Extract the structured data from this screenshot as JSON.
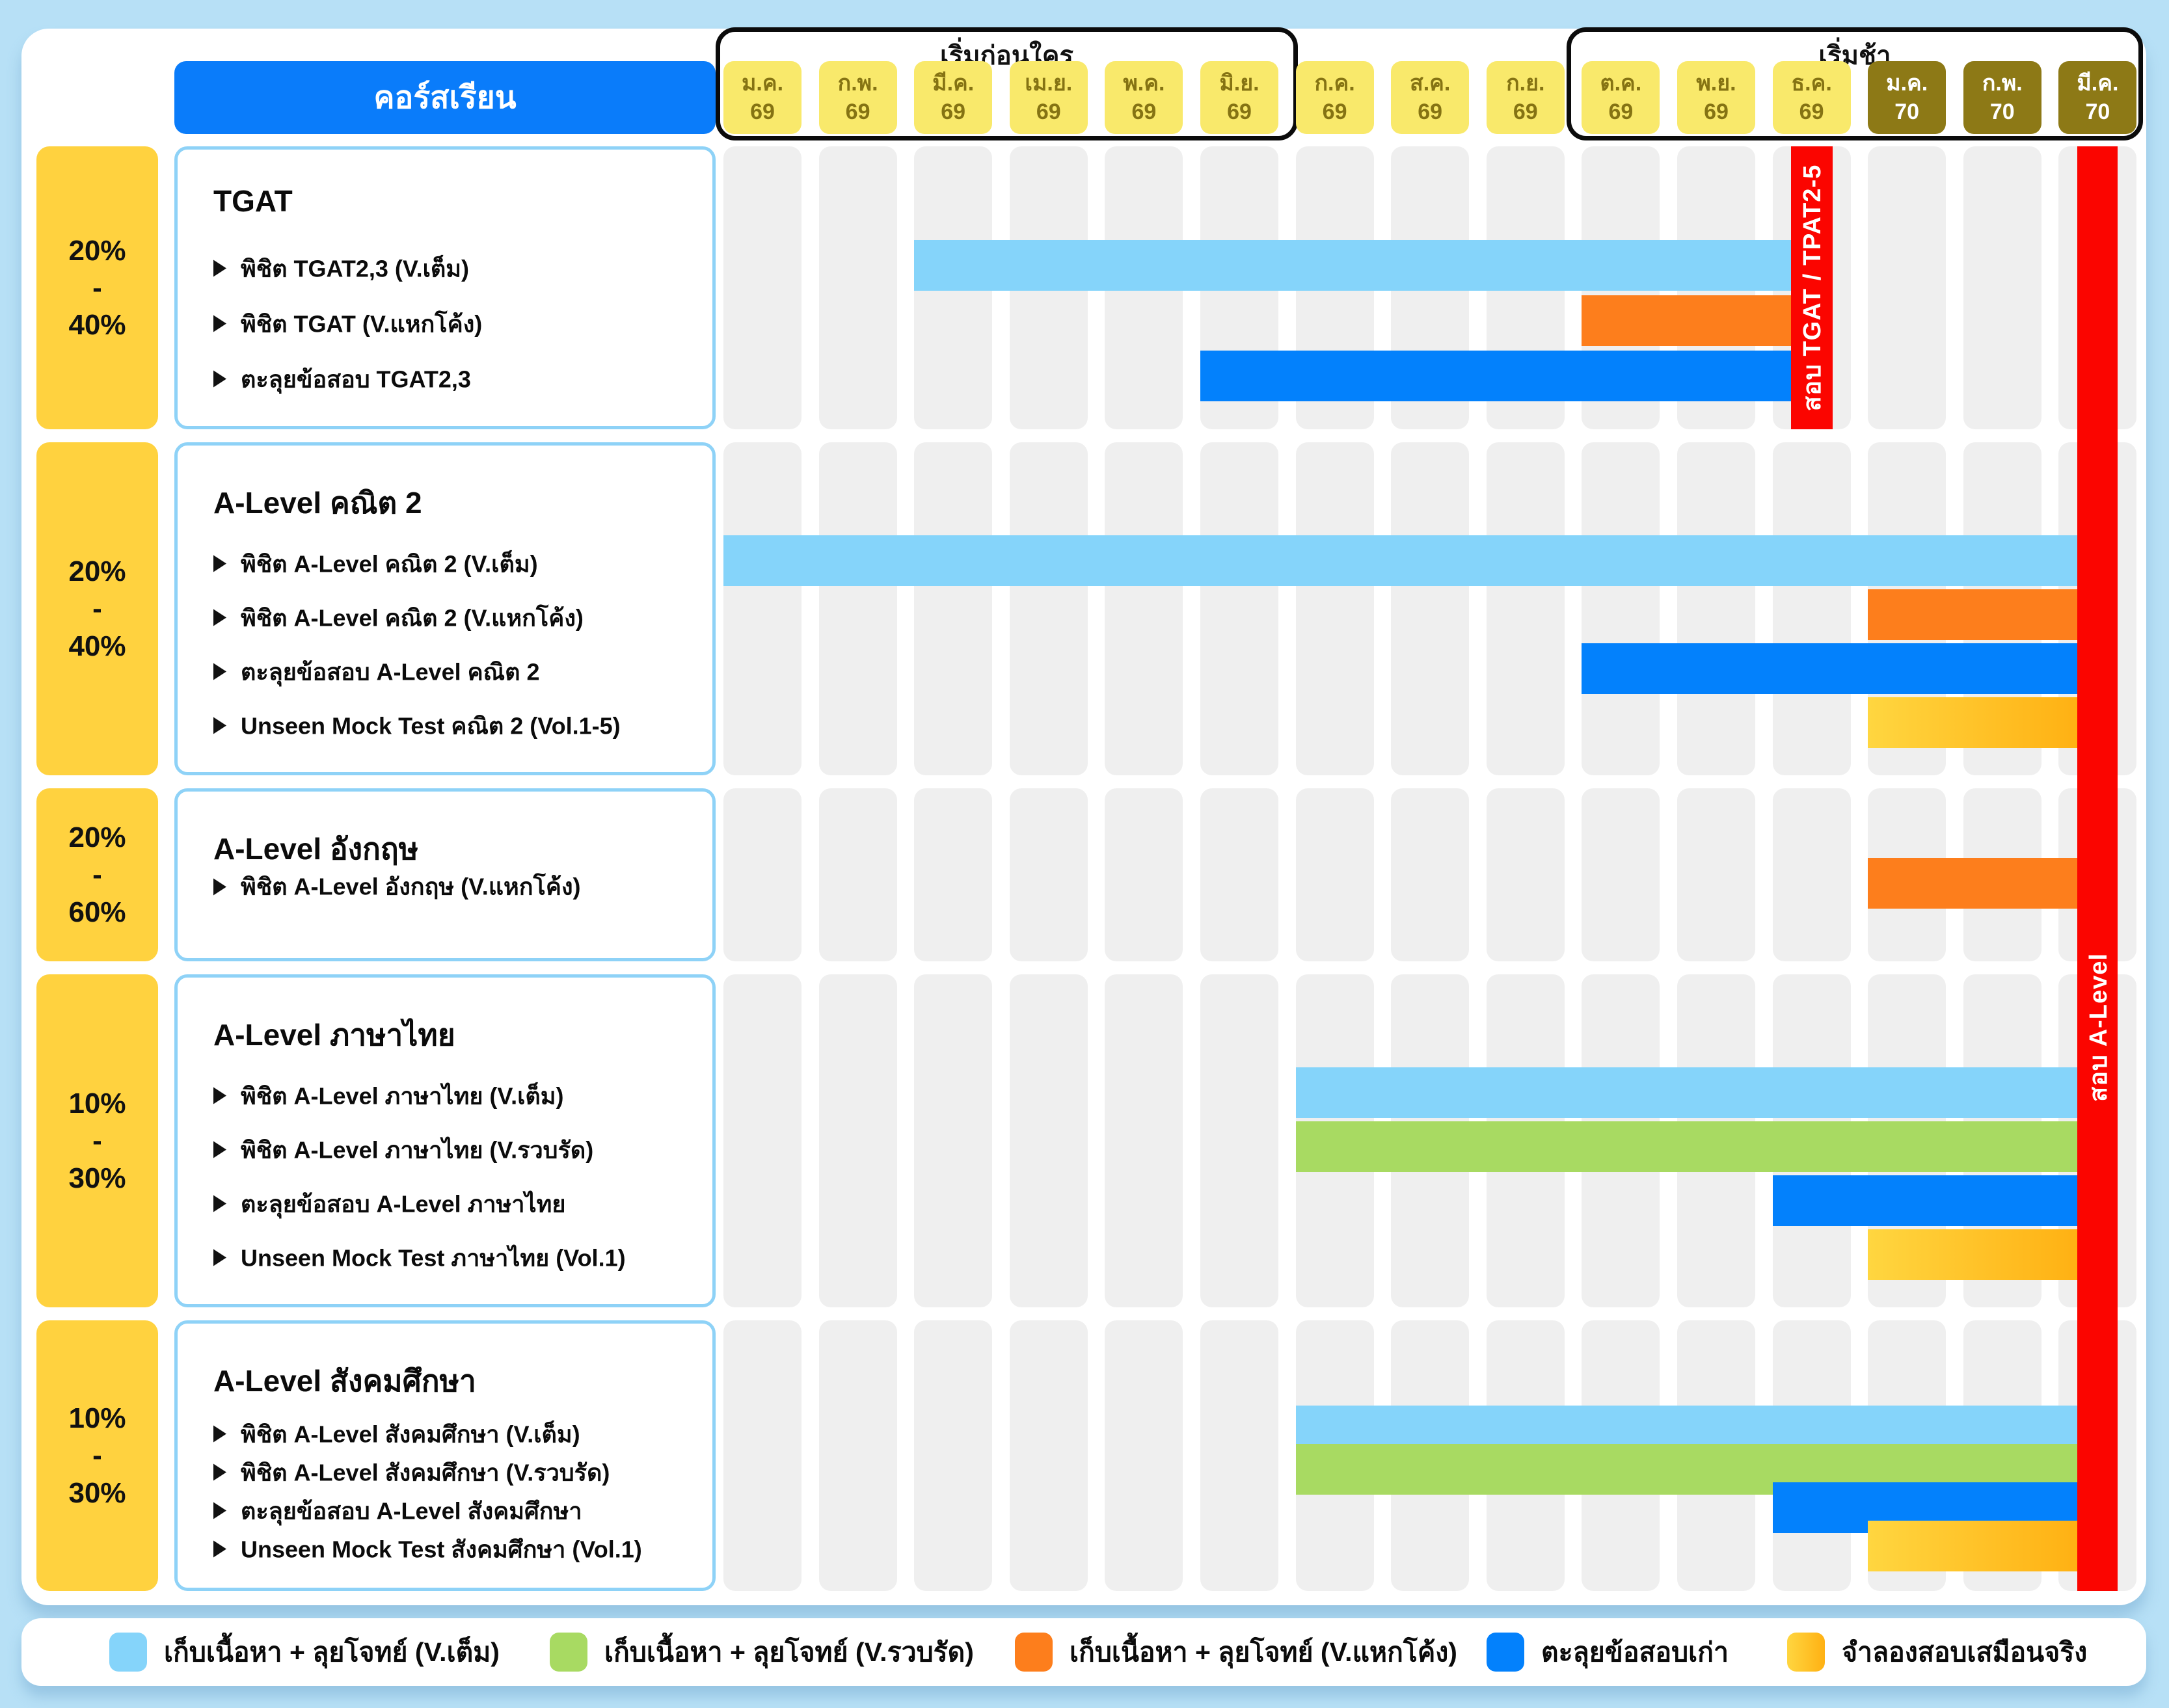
{
  "chart_data": {
    "type": "bar",
    "subtype": "gantt-study-plan",
    "course_column_header": "คอร์สเรียน",
    "phase_labels": {
      "early": "เริ่มก่อนใคร",
      "late": "เริ่มช้า"
    },
    "phase_ranges": {
      "early_months": [
        0,
        5
      ],
      "late_months": [
        9,
        14
      ]
    },
    "months": [
      {
        "label": "ม.ค.",
        "year": "69",
        "dark": false
      },
      {
        "label": "ก.พ.",
        "year": "69",
        "dark": false
      },
      {
        "label": "มี.ค.",
        "year": "69",
        "dark": false
      },
      {
        "label": "เม.ย.",
        "year": "69",
        "dark": false
      },
      {
        "label": "พ.ค.",
        "year": "69",
        "dark": false
      },
      {
        "label": "มิ.ย.",
        "year": "69",
        "dark": false
      },
      {
        "label": "ก.ค.",
        "year": "69",
        "dark": false
      },
      {
        "label": "ส.ค.",
        "year": "69",
        "dark": false
      },
      {
        "label": "ก.ย.",
        "year": "69",
        "dark": false
      },
      {
        "label": "ต.ค.",
        "year": "69",
        "dark": false
      },
      {
        "label": "พ.ย.",
        "year": "69",
        "dark": false
      },
      {
        "label": "ธ.ค.",
        "year": "69",
        "dark": false
      },
      {
        "label": "ม.ค.",
        "year": "70",
        "dark": true
      },
      {
        "label": "ก.พ.",
        "year": "70",
        "dark": true
      },
      {
        "label": "มี.ค.",
        "year": "70",
        "dark": true
      }
    ],
    "colors": {
      "full": "#85D4FA",
      "condensed": "#A8DA62",
      "crash": "#FD7E1C",
      "past": "#0381FC",
      "mock_start": "#FFD640",
      "mock_end": "#FFB113",
      "exam": "#FB0500",
      "month_cell": "#F9E96B",
      "month_cell_dark": "#8D7916",
      "weight_badge": "#FFD23F",
      "course_header": "#0A7CFA",
      "background": "#B7E0F6"
    },
    "exams": [
      {
        "label": "สอบ TGAT / TPAT2-5",
        "month_index": 11,
        "section_span": [
          0,
          0
        ]
      },
      {
        "label": "สอบ A-Level",
        "month_index": 14,
        "section_span": [
          0,
          4
        ]
      }
    ],
    "sections": [
      {
        "weight_lines": [
          "20%",
          "-",
          "40%"
        ],
        "title": "TGAT",
        "items": [
          {
            "label": "พิชิต TGAT2,3 (V.เต็ม)",
            "bar": {
              "key": "full",
              "start_month": "มี.ค. 69",
              "start_index": 2,
              "end_exam": 0
            }
          },
          {
            "label": "พิชิต TGAT (V.แหกโค้ง)",
            "bar": {
              "key": "crash",
              "start_month": "ต.ค. 69",
              "start_index": 9,
              "end_exam": 0
            }
          },
          {
            "label": "ตะลุยข้อสอบ TGAT2,3",
            "bar": {
              "key": "past",
              "start_month": "มิ.ย. 69",
              "start_index": 5,
              "end_exam": 0
            }
          }
        ]
      },
      {
        "weight_lines": [
          "20%",
          "-",
          "40%"
        ],
        "title": "A-Level คณิต 2",
        "items": [
          {
            "label": "พิชิต A-Level คณิต 2 (V.เต็ม)",
            "bar": {
              "key": "full",
              "start_month": "ม.ค. 69",
              "start_index": 0,
              "end_exam": 1
            }
          },
          {
            "label": "พิชิต A-Level คณิต 2 (V.แหกโค้ง)",
            "bar": {
              "key": "crash",
              "start_month": "ม.ค. 70",
              "start_index": 12,
              "end_exam": 1
            }
          },
          {
            "label": "ตะลุยข้อสอบ A-Level คณิต 2",
            "bar": {
              "key": "past",
              "start_month": "ต.ค. 69",
              "start_index": 9,
              "end_exam": 1
            }
          },
          {
            "label": "Unseen Mock Test คณิต 2 (Vol.1-5)",
            "bar": {
              "key": "mock",
              "start_month": "ม.ค. 70",
              "start_index": 12,
              "end_exam": 1
            }
          }
        ]
      },
      {
        "weight_lines": [
          "20%",
          "-",
          "60%"
        ],
        "title": "A-Level อังกฤษ",
        "items": [
          {
            "label": "พิชิต A-Level อังกฤษ (V.แหกโค้ง)",
            "bar": {
              "key": "crash",
              "start_month": "ม.ค. 70",
              "start_index": 12,
              "end_exam": 1
            }
          }
        ]
      },
      {
        "weight_lines": [
          "10%",
          "-",
          "30%"
        ],
        "title": "A-Level ภาษาไทย",
        "items": [
          {
            "label": "พิชิต A-Level ภาษาไทย (V.เต็ม)",
            "bar": {
              "key": "full",
              "start_month": "ก.ค. 69",
              "start_index": 6,
              "end_exam": 1
            }
          },
          {
            "label": "พิชิต A-Level ภาษาไทย (V.รวบรัด)",
            "bar": {
              "key": "condensed",
              "start_month": "ก.ค. 69",
              "start_index": 6,
              "end_exam": 1
            }
          },
          {
            "label": "ตะลุยข้อสอบ A-Level ภาษาไทย",
            "bar": {
              "key": "past",
              "start_month": "ธ.ค. 69",
              "start_index": 11,
              "end_exam": 1
            }
          },
          {
            "label": "Unseen Mock Test ภาษาไทย (Vol.1)",
            "bar": {
              "key": "mock",
              "start_month": "ม.ค. 70",
              "start_index": 12,
              "end_exam": 1
            }
          }
        ]
      },
      {
        "weight_lines": [
          "10%",
          "-",
          "30%"
        ],
        "title": "A-Level สังคมศึกษา",
        "items": [
          {
            "label": "พิชิต A-Level สังคมศึกษา (V.เต็ม)",
            "bar": {
              "key": "full",
              "start_month": "ก.ค. 69",
              "start_index": 6,
              "end_exam": 1
            }
          },
          {
            "label": "พิชิต A-Level สังคมศึกษา (V.รวบรัด)",
            "bar": {
              "key": "condensed",
              "start_month": "ก.ค. 69",
              "start_index": 6,
              "end_exam": 1
            }
          },
          {
            "label": "ตะลุยข้อสอบ A-Level สังคมศึกษา",
            "bar": {
              "key": "past",
              "start_month": "ธ.ค. 69",
              "start_index": 11,
              "end_exam": 1
            }
          },
          {
            "label": "Unseen Mock Test สังคมศึกษา (Vol.1)",
            "bar": {
              "key": "mock",
              "start_month": "ม.ค. 70",
              "start_index": 12,
              "end_exam": 1
            }
          }
        ]
      }
    ],
    "legend": [
      {
        "key": "full",
        "label": "เก็บเนื้อหา + ลุยโจทย์ (V.เต็ม)"
      },
      {
        "key": "condensed",
        "label": "เก็บเนื้อหา + ลุยโจทย์ (V.รวบรัด)"
      },
      {
        "key": "crash",
        "label": "เก็บเนื้อหา + ลุยโจทย์ (V.แหกโค้ง)"
      },
      {
        "key": "past",
        "label": "ตะลุยข้อสอบเก่า"
      },
      {
        "key": "mock",
        "label": "จำลองสอบเสมือนจริง"
      }
    ]
  }
}
